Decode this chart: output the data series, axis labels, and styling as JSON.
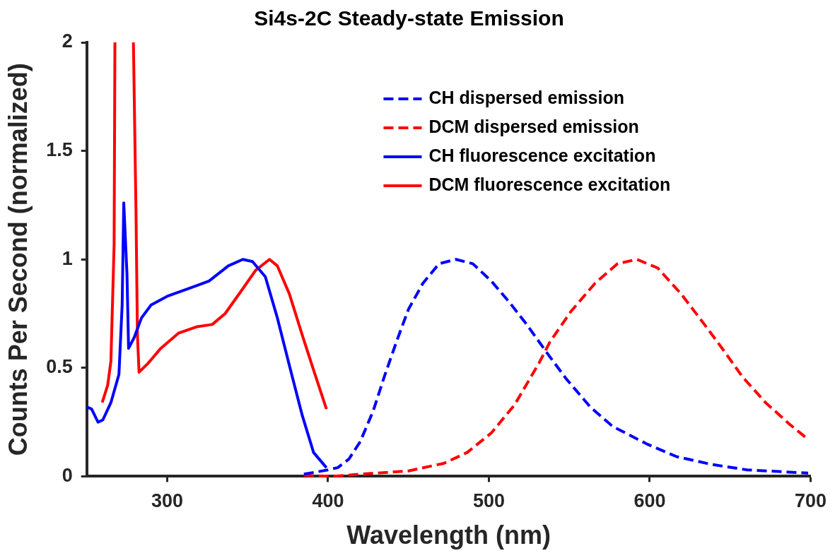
{
  "chart_data": {
    "type": "line",
    "title": "Si4s-2C Steady-state Emission",
    "xlabel": "Wavelength (nm)",
    "ylabel": "Counts Per Second (normalized)",
    "xlim": [
      250,
      700
    ],
    "xticks": [
      300,
      400,
      500,
      600,
      700
    ],
    "ylim": [
      0,
      2
    ],
    "yticks": [
      0,
      0.5,
      1,
      1.5,
      2
    ],
    "grid": false,
    "legend": "top",
    "marker": "none",
    "series": [
      {
        "name": "CH dispersed emission",
        "color": "#0000ff",
        "line_style": "dashed",
        "x": [
          385,
          400,
          406,
          413,
          420,
          428,
          435,
          443,
          450,
          459,
          469,
          479.5,
          490,
          501.5,
          513,
          523.5,
          537,
          548,
          563,
          577,
          598,
          617,
          638.5,
          660.5,
          698.5
        ],
        "values": [
          0.01,
          0.03,
          0.04,
          0.08,
          0.16,
          0.3,
          0.46,
          0.63,
          0.77,
          0.89,
          0.98,
          1.0,
          0.98,
          0.9,
          0.8,
          0.7,
          0.56,
          0.45,
          0.32,
          0.23,
          0.15,
          0.09,
          0.055,
          0.03,
          0.015
        ]
      },
      {
        "name": "DCM dispersed emission",
        "color": "#ff0000",
        "line_style": "dashed",
        "x": [
          385,
          403,
          420,
          450,
          472,
          486.5,
          501.5,
          516,
          531,
          538,
          551,
          566,
          580,
          592,
          605,
          619.6,
          634,
          646,
          657.5,
          672,
          687,
          698.5
        ],
        "values": [
          0.005,
          0.0,
          0.01,
          0.025,
          0.06,
          0.11,
          0.2,
          0.33,
          0.52,
          0.62,
          0.76,
          0.89,
          0.98,
          1.0,
          0.96,
          0.84,
          0.7,
          0.58,
          0.46,
          0.34,
          0.24,
          0.17
        ]
      },
      {
        "name": "CH fluorescence excitation",
        "color": "#0000ff",
        "line_style": "solid",
        "x": [
          250,
          253,
          257,
          260,
          265,
          270,
          272,
          273,
          275,
          276,
          279.5,
          284,
          290,
          300,
          315,
          326,
          338,
          347,
          353,
          361,
          368.5,
          376,
          384,
          391,
          399
        ],
        "values": [
          0.32,
          0.31,
          0.25,
          0.26,
          0.34,
          0.47,
          0.79,
          1.26,
          0.93,
          0.59,
          0.64,
          0.73,
          0.79,
          0.83,
          0.87,
          0.9,
          0.97,
          1.0,
          0.99,
          0.92,
          0.73,
          0.51,
          0.28,
          0.11,
          0.04
        ]
      },
      {
        "name": "DCM fluorescence excitation",
        "color": "#ff0000",
        "line_style": "solid",
        "x": [
          259.6,
          263,
          265,
          267,
          267.5,
          273,
          279,
          280.6,
          281.5,
          282.5,
          288,
          296,
          307,
          318.7,
          328,
          336,
          345.6,
          355,
          363.6,
          368.5,
          376,
          384,
          391,
          399
        ],
        "values": [
          0.34,
          0.42,
          0.53,
          1.07,
          2,
          null,
          2,
          1.22,
          0.65,
          0.48,
          0.52,
          0.59,
          0.66,
          0.69,
          0.7,
          0.75,
          0.85,
          0.95,
          1.0,
          0.97,
          0.84,
          0.65,
          0.49,
          0.31
        ]
      }
    ]
  }
}
